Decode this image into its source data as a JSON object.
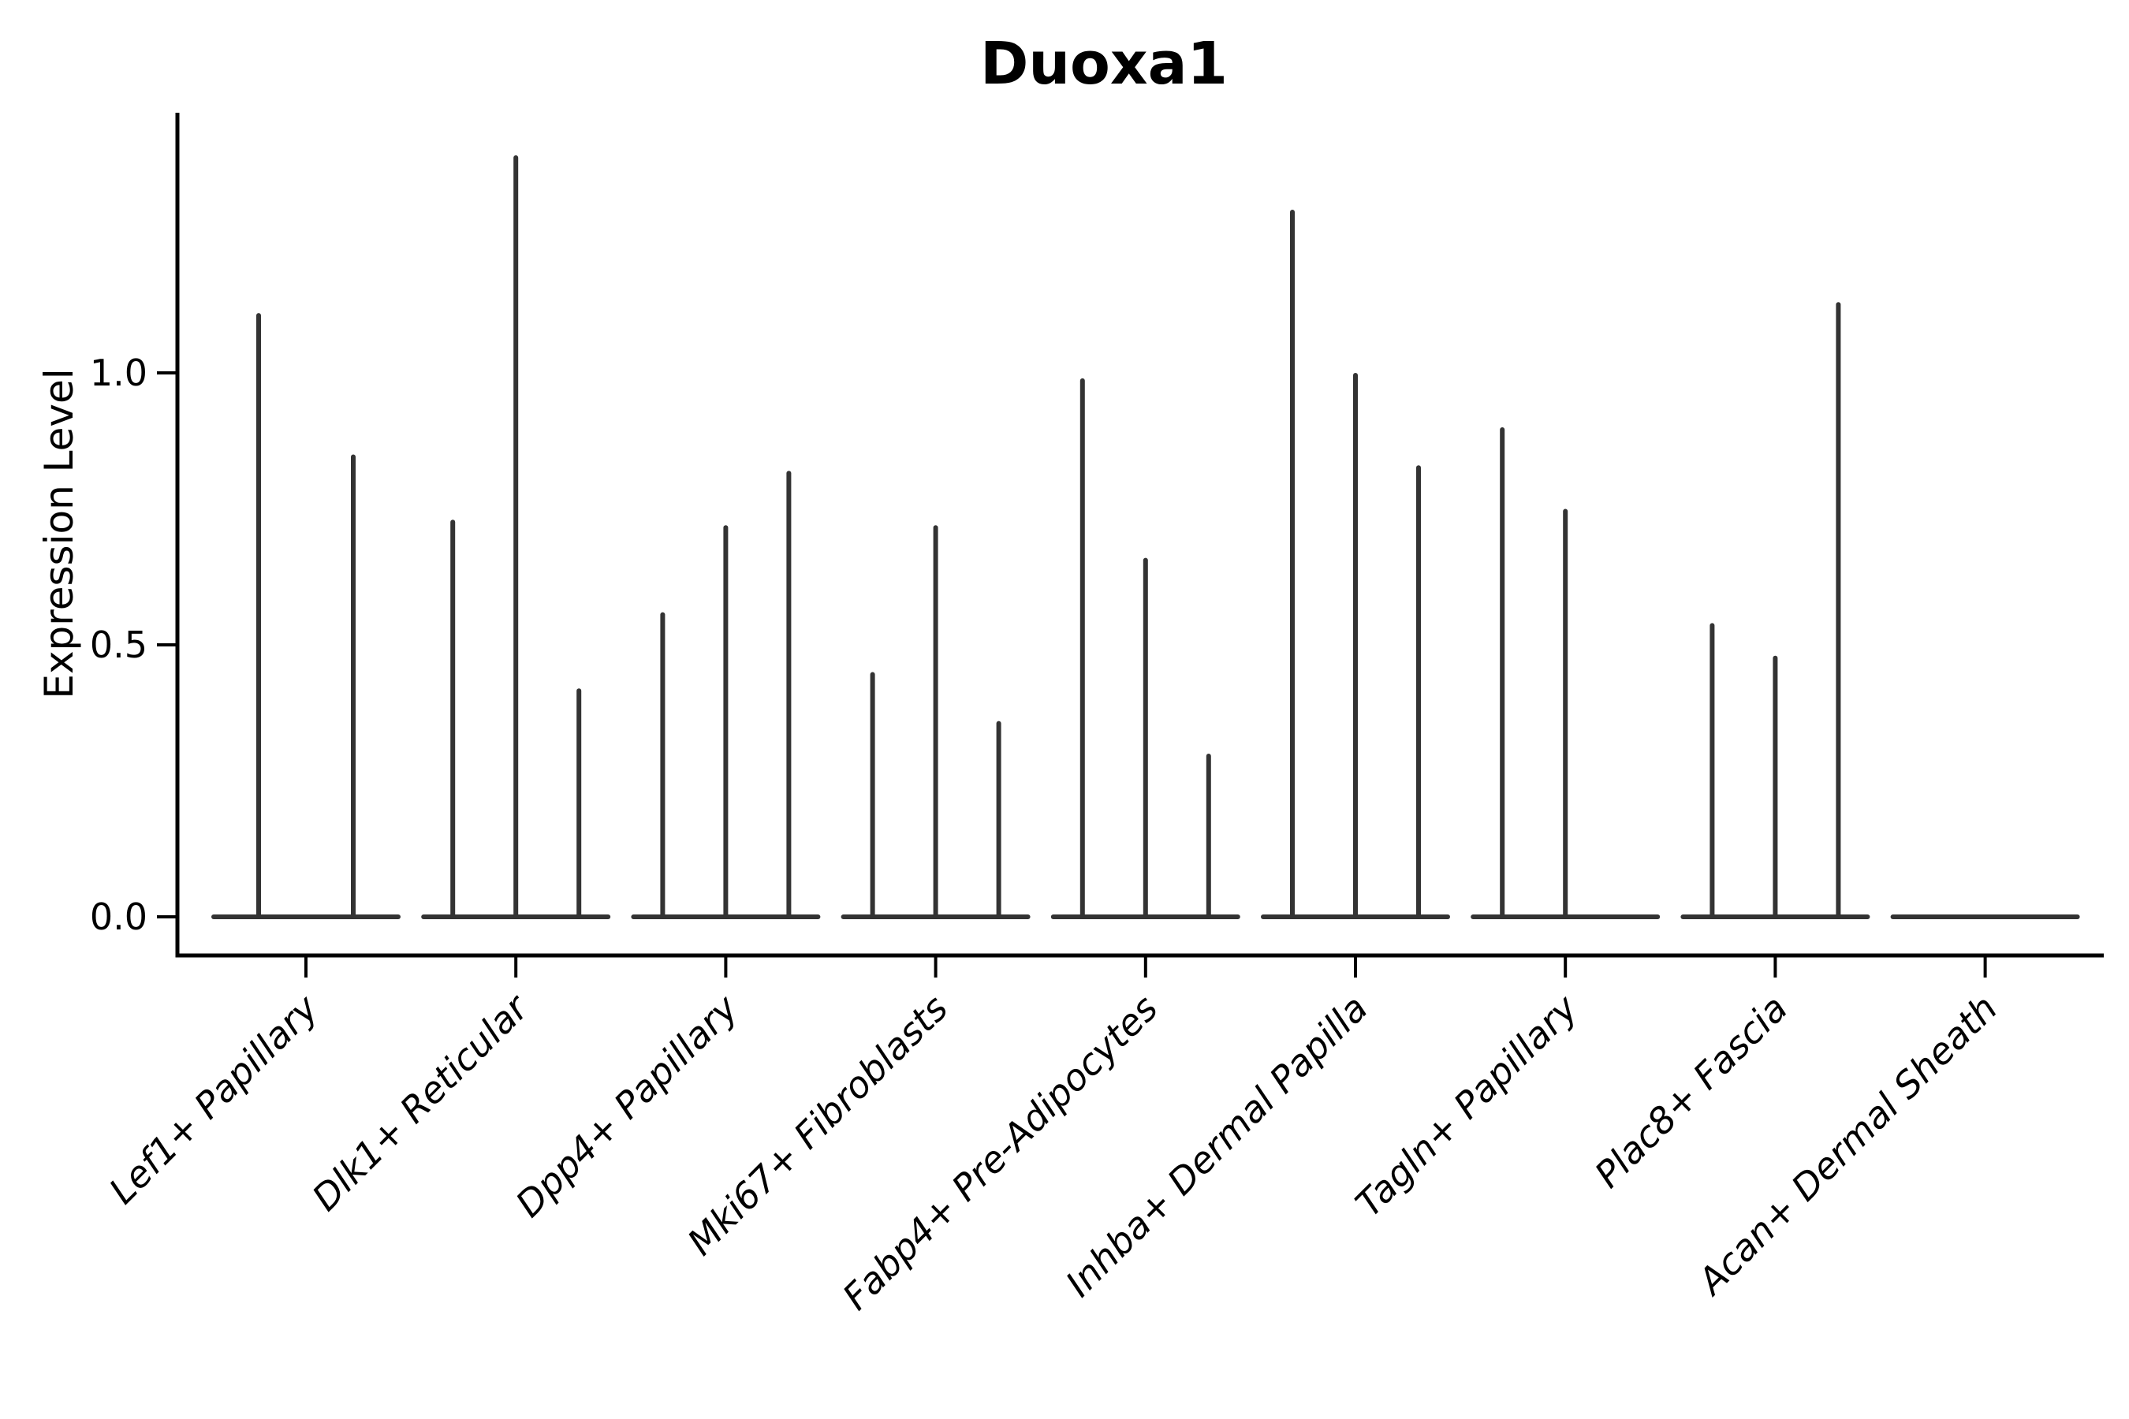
{
  "title": "Duoxa1",
  "ylabel": "Expression Level",
  "chart_data": {
    "type": "violin",
    "title": "Duoxa1",
    "xlabel": "",
    "ylabel": "Expression Level",
    "ylim": [
      0,
      1.48
    ],
    "yticks": [
      0.0,
      0.5,
      1.0
    ],
    "ytick_labels": [
      "0.0",
      "0.5",
      "1.0"
    ],
    "grid": false,
    "legend": "none",
    "violin_color": "#333333",
    "axis_color": "#000000",
    "groups": [
      {
        "category": "Lef1+ Papillary",
        "violin_max_expression": [
          1.11,
          0.85
        ]
      },
      {
        "category": "Dlk1+ Reticular",
        "violin_max_expression": [
          0.73,
          1.4,
          0.42
        ]
      },
      {
        "category": "Dpp4+ Papillary",
        "violin_max_expression": [
          0.56,
          0.72,
          0.82
        ]
      },
      {
        "category": "Mki67+ Fibroblasts",
        "violin_max_expression": [
          0.45,
          0.72,
          0.36
        ]
      },
      {
        "category": "Fabp4+ Pre-Adipocytes",
        "violin_max_expression": [
          0.99,
          0.66,
          0.3
        ]
      },
      {
        "category": "Inhba+ Dermal Papilla",
        "violin_max_expression": [
          1.3,
          1.0,
          0.83
        ]
      },
      {
        "category": "Tagln+ Papillary",
        "violin_max_expression": [
          0.9,
          0.75,
          0.0
        ]
      },
      {
        "category": "Plac8+ Fascia",
        "violin_max_expression": [
          0.54,
          0.48,
          1.13
        ]
      },
      {
        "category": "Acan+ Dermal Sheath",
        "violin_max_expression": [
          0.0,
          0.0,
          0.0
        ]
      }
    ]
  }
}
